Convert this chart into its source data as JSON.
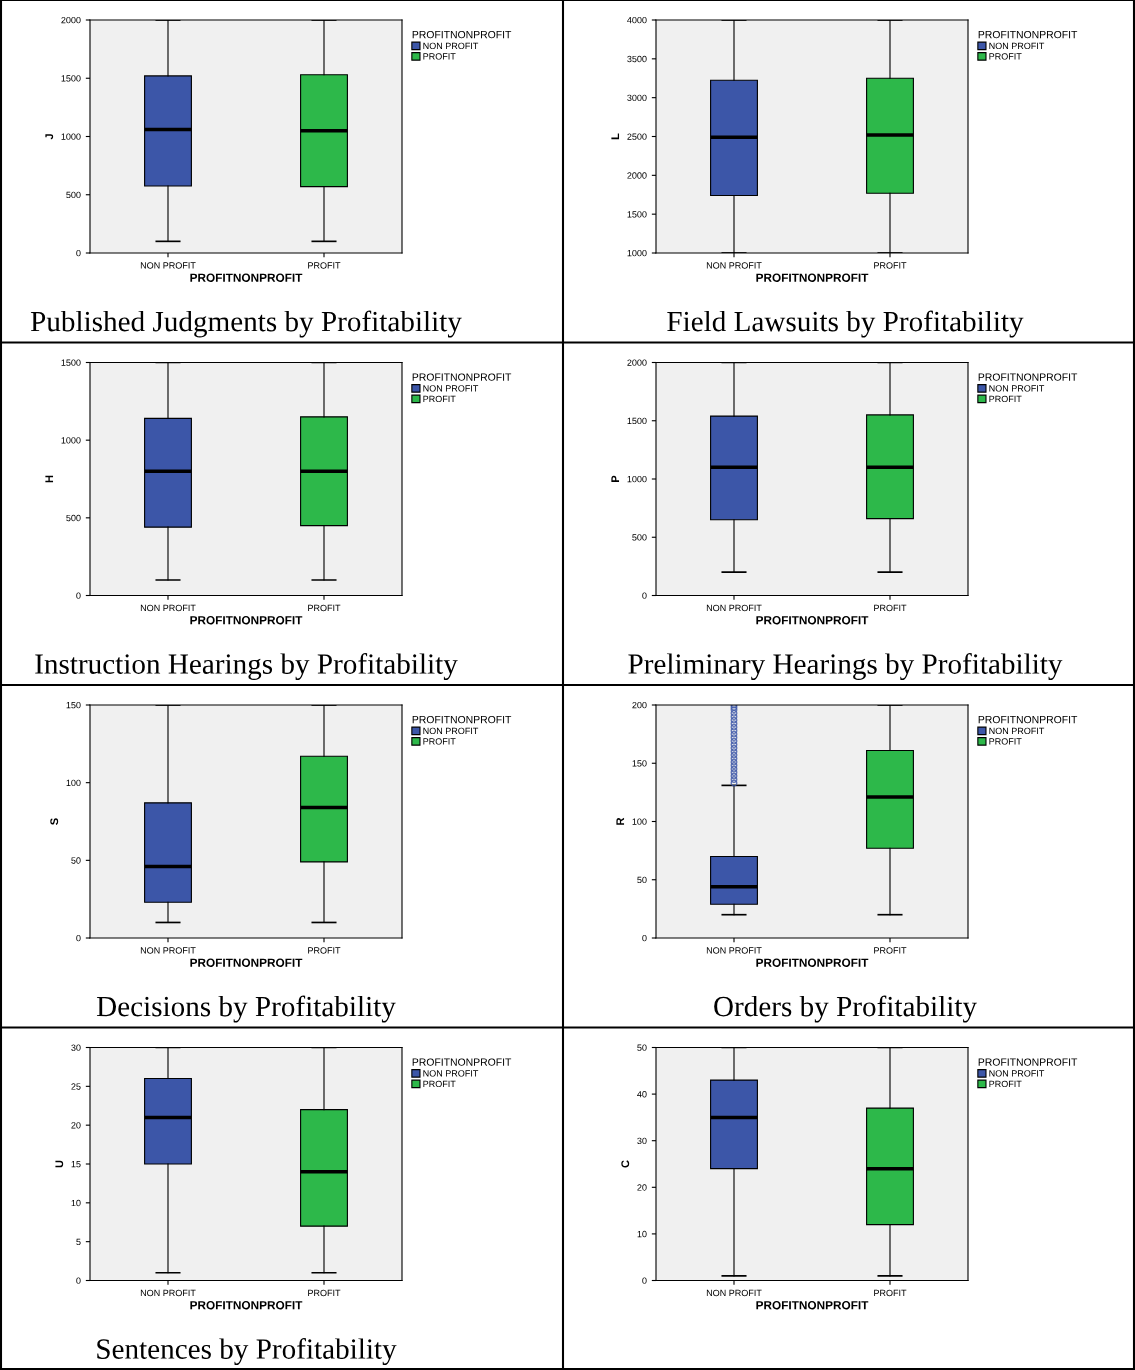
{
  "chart_data": [
    {
      "type": "box",
      "title": "Published Judgments by Profitability",
      "xlabel": "PROFITNONPROFIT",
      "ylabel": "J",
      "legend_title": "PROFITNONPROFIT",
      "legend": "right",
      "categories": [
        "NON PROFIT",
        "PROFIT"
      ],
      "ylim": [
        0,
        2000
      ],
      "yticks": [
        0,
        500,
        1000,
        1500,
        2000
      ],
      "series": [
        {
          "name": "NON PROFIT",
          "color": "#3c56a8",
          "boxes": [
            {
              "low": 100,
              "q1": 575,
              "median": 1060,
              "q3": 1520,
              "high": 2000
            },
            null
          ]
        },
        {
          "name": "PROFIT",
          "color": "#2db84a",
          "boxes": [
            null,
            {
              "low": 100,
              "q1": 570,
              "median": 1050,
              "q3": 1530,
              "high": 2000
            }
          ]
        }
      ]
    },
    {
      "type": "box",
      "title": "Field Lawsuits by Profitability",
      "xlabel": "PROFITNONPROFIT",
      "ylabel": "L",
      "legend_title": "PROFITNONPROFIT",
      "legend": "right",
      "categories": [
        "NON PROFIT",
        "PROFIT"
      ],
      "ylim": [
        1000,
        4000
      ],
      "yticks": [
        1000,
        1500,
        2000,
        2500,
        3000,
        3500,
        4000
      ],
      "series": [
        {
          "name": "NON PROFIT",
          "color": "#3c56a8",
          "boxes": [
            {
              "low": 1000,
              "q1": 1740,
              "median": 2490,
              "q3": 3225,
              "high": 4000
            },
            null
          ]
        },
        {
          "name": "PROFIT",
          "color": "#2db84a",
          "boxes": [
            null,
            {
              "low": 1000,
              "q1": 1770,
              "median": 2520,
              "q3": 3250,
              "high": 4000
            }
          ]
        }
      ]
    },
    {
      "type": "box",
      "title": "Instruction Hearings by Profitability",
      "xlabel": "PROFITNONPROFIT",
      "ylabel": "H",
      "legend_title": "PROFITNONPROFIT",
      "legend": "right",
      "categories": [
        "NON PROFIT",
        "PROFIT"
      ],
      "ylim": [
        0,
        1500
      ],
      "yticks": [
        0,
        500,
        1000,
        1500
      ],
      "series": [
        {
          "name": "NON PROFIT",
          "color": "#3c56a8",
          "boxes": [
            {
              "low": 100,
              "q1": 440,
              "median": 800,
              "q3": 1140,
              "high": 1500
            },
            null
          ]
        },
        {
          "name": "PROFIT",
          "color": "#2db84a",
          "boxes": [
            null,
            {
              "low": 100,
              "q1": 450,
              "median": 800,
              "q3": 1150,
              "high": 1500
            }
          ]
        }
      ]
    },
    {
      "type": "box",
      "title": "Preliminary Hearings by Profitability",
      "xlabel": "PROFITNONPROFIT",
      "ylabel": "P",
      "legend_title": "PROFITNONPROFIT",
      "legend": "right",
      "categories": [
        "NON PROFIT",
        "PROFIT"
      ],
      "ylim": [
        0,
        2000
      ],
      "yticks": [
        0,
        500,
        1000,
        1500,
        2000
      ],
      "series": [
        {
          "name": "NON PROFIT",
          "color": "#3c56a8",
          "boxes": [
            {
              "low": 200,
              "q1": 650,
              "median": 1100,
              "q3": 1540,
              "high": 2000
            },
            null
          ]
        },
        {
          "name": "PROFIT",
          "color": "#2db84a",
          "boxes": [
            null,
            {
              "low": 200,
              "q1": 660,
              "median": 1100,
              "q3": 1550,
              "high": 2000
            }
          ]
        }
      ]
    },
    {
      "type": "box",
      "title": "Decisions by Profitability",
      "xlabel": "PROFITNONPROFIT",
      "ylabel": "S",
      "legend_title": "PROFITNONPROFIT",
      "legend": "right",
      "categories": [
        "NON PROFIT",
        "PROFIT"
      ],
      "ylim": [
        0,
        150
      ],
      "yticks": [
        0,
        50,
        100,
        150
      ],
      "series": [
        {
          "name": "NON PROFIT",
          "color": "#3c56a8",
          "boxes": [
            {
              "low": 10,
              "q1": 23,
              "median": 46,
              "q3": 87,
              "high": 150
            },
            null
          ]
        },
        {
          "name": "PROFIT",
          "color": "#2db84a",
          "boxes": [
            null,
            {
              "low": 10,
              "q1": 49,
              "median": 84,
              "q3": 117,
              "high": 150
            }
          ]
        }
      ]
    },
    {
      "type": "box",
      "title": "Orders by Profitability",
      "xlabel": "PROFITNONPROFIT",
      "ylabel": "R",
      "legend_title": "PROFITNONPROFIT",
      "legend": "right",
      "categories": [
        "NON PROFIT",
        "PROFIT"
      ],
      "ylim": [
        0,
        200
      ],
      "yticks": [
        0,
        50,
        100,
        150,
        200
      ],
      "series": [
        {
          "name": "NON PROFIT",
          "color": "#3c56a8",
          "boxes": [
            {
              "low": 20,
              "q1": 29,
              "median": 44,
              "q3": 70,
              "high": 131,
              "outliers": [
                133,
                136,
                139,
                142,
                145,
                148,
                151,
                154,
                157,
                160,
                163,
                166,
                169,
                172,
                175,
                178,
                181,
                184,
                187,
                190,
                193,
                196,
                198,
                200
              ]
            },
            null
          ]
        },
        {
          "name": "PROFIT",
          "color": "#2db84a",
          "boxes": [
            null,
            {
              "low": 20,
              "q1": 77,
              "median": 121,
              "q3": 161,
              "high": 200
            }
          ]
        }
      ]
    },
    {
      "type": "box",
      "title": "Sentences by Profitability",
      "xlabel": "PROFITNONPROFIT",
      "ylabel": "U",
      "legend_title": "PROFITNONPROFIT",
      "legend": "right",
      "categories": [
        "NON PROFIT",
        "PROFIT"
      ],
      "ylim": [
        0,
        30
      ],
      "yticks": [
        0,
        5,
        10,
        15,
        20,
        25,
        30
      ],
      "series": [
        {
          "name": "NON PROFIT",
          "color": "#3c56a8",
          "boxes": [
            {
              "low": 1,
              "q1": 15,
              "median": 21,
              "q3": 26,
              "high": 30
            },
            null
          ]
        },
        {
          "name": "PROFIT",
          "color": "#2db84a",
          "boxes": [
            null,
            {
              "low": 1,
              "q1": 7,
              "median": 14,
              "q3": 22,
              "high": 30
            }
          ]
        }
      ]
    },
    {
      "type": "box",
      "xlabel": "PROFITNONPROFIT",
      "ylabel": "C",
      "legend_title": "PROFITNONPROFIT",
      "legend": "right",
      "categories": [
        "NON PROFIT",
        "PROFIT"
      ],
      "ylim": [
        0,
        50
      ],
      "yticks": [
        0,
        10,
        20,
        30,
        40,
        50
      ],
      "series": [
        {
          "name": "NON PROFIT",
          "color": "#3c56a8",
          "boxes": [
            {
              "low": 1,
              "q1": 24,
              "median": 35,
              "q3": 43,
              "high": 50
            },
            null
          ]
        },
        {
          "name": "PROFIT",
          "color": "#2db84a",
          "boxes": [
            null,
            {
              "low": 1,
              "q1": 12,
              "median": 24,
              "q3": 37,
              "high": 50
            }
          ]
        }
      ]
    }
  ]
}
